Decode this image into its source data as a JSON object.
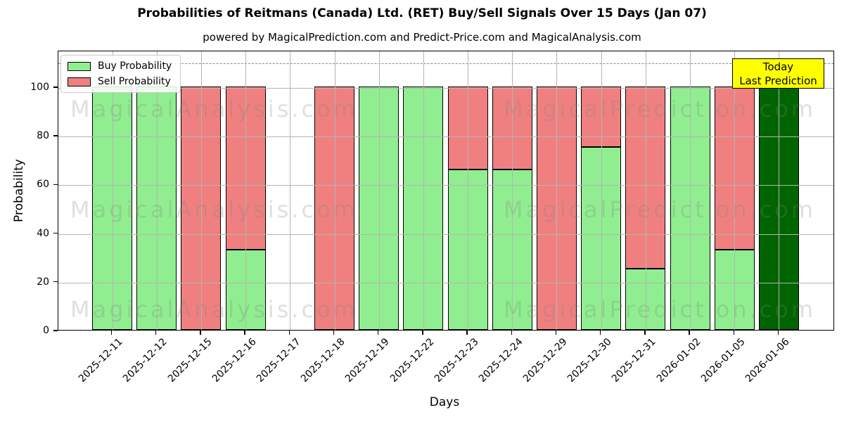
{
  "figure": {
    "title": "Probabilities of Reitmans (Canada) Ltd. (RET) Buy/Sell Signals Over 15 Days (Jan 07)",
    "subtitle": "powered by MagicalPrediction.com and Predict-Price.com and MagicalAnalysis.com"
  },
  "chart_data": {
    "type": "bar",
    "stacked": true,
    "title": "Probabilities of Reitmans (Canada) Ltd. (RET) Buy/Sell Signals Over 15 Days (Jan 07)",
    "subtitle": "powered by MagicalPrediction.com and Predict-Price.com and MagicalAnalysis.com",
    "xlabel": "Days",
    "ylabel": "Probability",
    "ylim": [
      0,
      115
    ],
    "yticks": [
      0,
      20,
      40,
      60,
      80,
      100
    ],
    "grid": true,
    "grid_color": "#b4b4b4",
    "dashed_guide_y": 110,
    "categories": [
      "2025-12-11",
      "2025-12-12",
      "2025-12-15",
      "2025-12-16",
      "2025-12-17",
      "2025-12-18",
      "2025-12-19",
      "2025-12-22",
      "2025-12-23",
      "2025-12-24",
      "2025-12-29",
      "2025-12-30",
      "2025-12-31",
      "2026-01-02",
      "2026-01-05",
      "2026-01-06"
    ],
    "series": [
      {
        "name": "Buy Probability",
        "color": "#90ee90",
        "values": [
          100,
          100,
          0,
          33,
          0,
          0,
          100,
          100,
          66,
          66,
          0,
          75,
          25,
          100,
          33,
          100
        ]
      },
      {
        "name": "Sell Probability",
        "color": "#f08080",
        "values": [
          0,
          0,
          100,
          67,
          0,
          100,
          0,
          0,
          34,
          34,
          100,
          25,
          75,
          0,
          67,
          0
        ]
      }
    ],
    "bar_edge_color": "#000000",
    "highlight_bar": {
      "index": 15,
      "category": "2026-01-06",
      "color": "#006400",
      "meaning": "Today / Last Prediction"
    },
    "legend_position": "upper-left"
  },
  "annotation_box": {
    "line1": "Today",
    "line2": "Last Prediction",
    "bg_color": "#ffff00",
    "border_color": "#000000"
  },
  "watermarks": {
    "left": "MagicalAnalysis.com",
    "right": "MagicalPrediction.com",
    "rows": 3,
    "color": "#808080"
  }
}
